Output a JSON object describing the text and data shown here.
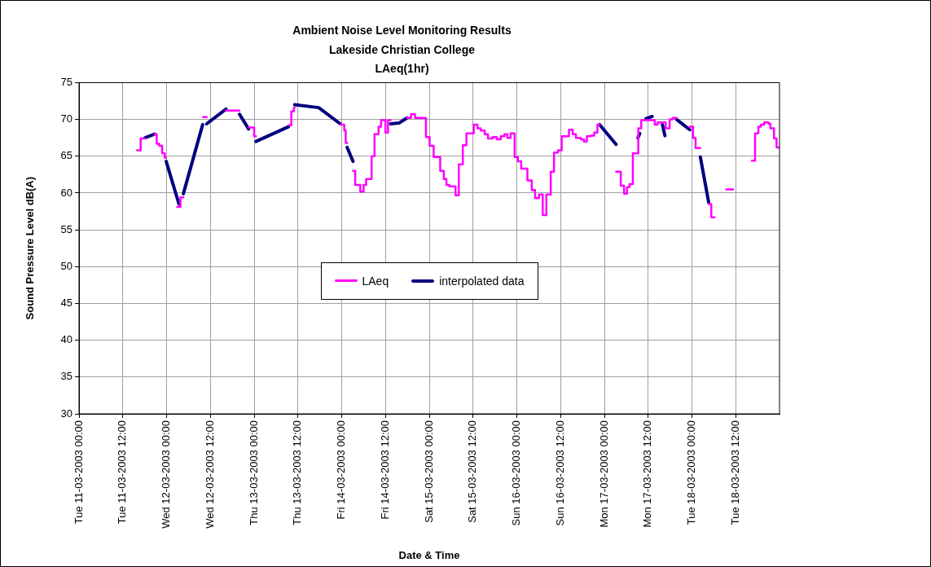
{
  "chart_data": {
    "type": "line",
    "title": "Ambient Noise Level Monitoring Results\nLakeside Christian College\nLAeq(1hr)",
    "xlabel": "Date & Time",
    "ylabel": "Sound Pressure Level dB(A)",
    "xlim": [
      "2003-03-11T00:00",
      "2003-03-19T00:00"
    ],
    "xticks": [
      {
        "value": "2003-03-11T00:00",
        "label": "Tue 11-03-2003 00:00"
      },
      {
        "value": "2003-03-11T12:00",
        "label": "Tue 11-03-2003 12:00"
      },
      {
        "value": "2003-03-12T00:00",
        "label": "Wed 12-03-2003 00:00"
      },
      {
        "value": "2003-03-12T12:00",
        "label": "Wed 12-03-2003 12:00"
      },
      {
        "value": "2003-03-13T00:00",
        "label": "Thu 13-03-2003 00:00"
      },
      {
        "value": "2003-03-13T12:00",
        "label": "Thu 13-03-2003 12:00"
      },
      {
        "value": "2003-03-14T00:00",
        "label": "Fri 14-03-2003 00:00"
      },
      {
        "value": "2003-03-14T12:00",
        "label": "Fri 14-03-2003 12:00"
      },
      {
        "value": "2003-03-15T00:00",
        "label": "Sat 15-03-2003 00:00"
      },
      {
        "value": "2003-03-15T12:00",
        "label": "Sat 15-03-2003 12:00"
      },
      {
        "value": "2003-03-16T00:00",
        "label": "Sun 16-03-2003 00:00"
      },
      {
        "value": "2003-03-16T12:00",
        "label": "Sun 16-03-2003 12:00"
      },
      {
        "value": "2003-03-17T00:00",
        "label": "Mon 17-03-2003 00:00"
      },
      {
        "value": "2003-03-17T12:00",
        "label": "Mon 17-03-2003 12:00"
      },
      {
        "value": "2003-03-18T00:00",
        "label": "Tue 18-03-2003 00:00"
      },
      {
        "value": "2003-03-18T12:00",
        "label": "Tue 18-03-2003 12:00"
      }
    ],
    "ylim": [
      30,
      75
    ],
    "yticks": [
      30,
      35,
      40,
      45,
      50,
      55,
      60,
      65,
      70,
      75
    ],
    "grid": true,
    "legend": "center",
    "marker": "none",
    "series": [
      {
        "name": "LAeq",
        "type": "step",
        "color": "#ff00ff",
        "x": [
          "2003-03-11T15:54",
          "2003-03-11T16:54",
          "2003-03-11T18:06",
          "2003-03-11T19:00",
          "2003-03-11T20:42",
          "2003-03-11T21:18",
          "2003-03-11T22:00",
          "2003-03-11T22:48",
          "2003-03-11T23:30",
          "2003-03-11T23:54",
          "2003-03-12T01:00",
          "2003-03-12T02:54",
          "2003-03-12T03:48",
          "2003-03-12T04:36",
          "2003-03-12T07:00",
          "2003-03-12T10:00",
          "2003-03-12T11:00",
          "2003-03-12T13:00",
          "2003-03-12T16:18",
          "2003-03-12T20:00",
          "2003-03-12T21:00",
          "2003-03-12T22:30",
          "2003-03-13T00:00",
          "2003-03-13T00:30",
          "2003-03-13T04:00",
          "2003-03-13T09:24",
          "2003-03-13T10:12",
          "2003-03-13T10:54",
          "2003-03-13T11:06",
          "2003-03-13T17:00",
          "2003-03-13T23:36",
          "2003-03-14T00:42",
          "2003-03-14T01:06",
          "2003-03-14T01:30",
          "2003-03-14T02:00",
          "2003-03-14T03:06",
          "2003-03-14T03:42",
          "2003-03-14T05:06",
          "2003-03-14T06:00",
          "2003-03-14T06:42",
          "2003-03-14T08:12",
          "2003-03-14T09:00",
          "2003-03-14T10:06",
          "2003-03-14T10:48",
          "2003-03-14T12:00",
          "2003-03-14T12:42",
          "2003-03-14T13:24",
          "2003-03-14T15:00",
          "2003-03-14T17:54",
          "2003-03-14T19:00",
          "2003-03-14T20:06",
          "2003-03-14T23:06",
          "2003-03-15T00:06",
          "2003-03-15T01:12",
          "2003-03-15T03:00",
          "2003-03-15T04:00",
          "2003-03-15T04:42",
          "2003-03-15T05:30",
          "2003-03-15T07:12",
          "2003-03-15T08:06",
          "2003-03-15T09:12",
          "2003-03-15T10:12",
          "2003-03-15T12:12",
          "2003-03-15T13:12",
          "2003-03-15T14:06",
          "2003-03-15T15:12",
          "2003-03-15T16:06",
          "2003-03-15T17:24",
          "2003-03-15T18:30",
          "2003-03-15T19:36",
          "2003-03-15T20:36",
          "2003-03-15T21:24",
          "2003-03-15T22:18",
          "2003-03-15T23:24",
          "2003-03-16T00:18",
          "2003-03-16T01:12",
          "2003-03-16T02:54",
          "2003-03-16T04:06",
          "2003-03-16T05:00",
          "2003-03-16T06:06",
          "2003-03-16T07:06",
          "2003-03-16T08:06",
          "2003-03-16T09:18",
          "2003-03-16T10:12",
          "2003-03-16T11:18",
          "2003-03-16T12:18",
          "2003-03-16T14:18",
          "2003-03-16T15:18",
          "2003-03-16T16:12",
          "2003-03-16T17:30",
          "2003-03-16T18:24",
          "2003-03-16T19:12",
          "2003-03-16T20:18",
          "2003-03-16T21:12",
          "2003-03-16T22:06",
          "2003-03-16T22:42",
          "2003-03-17T01:00",
          "2003-03-17T03:12",
          "2003-03-17T04:30",
          "2003-03-17T05:24",
          "2003-03-17T06:12",
          "2003-03-17T06:54",
          "2003-03-17T07:48",
          "2003-03-17T09:18",
          "2003-03-17T10:06",
          "2003-03-17T13:06",
          "2003-03-17T13:48",
          "2003-03-17T14:36",
          "2003-03-17T16:24",
          "2003-03-17T16:48",
          "2003-03-17T17:54",
          "2003-03-17T18:42",
          "2003-03-17T19:48",
          "2003-03-17T21:00",
          "2003-03-17T23:24",
          "2003-03-18T00:18",
          "2003-03-18T01:00",
          "2003-03-18T02:18",
          "2003-03-18T03:00",
          "2003-03-18T04:36",
          "2003-03-18T05:18",
          "2003-03-18T06:12",
          "2003-03-18T08:00",
          "2003-03-18T09:24",
          "2003-03-18T11:18",
          "2003-03-18T14:00",
          "2003-03-18T16:24",
          "2003-03-18T17:18",
          "2003-03-18T18:12",
          "2003-03-18T18:54",
          "2003-03-18T19:48",
          "2003-03-18T21:00",
          "2003-03-18T21:30",
          "2003-03-18T22:30",
          "2003-03-18T23:12",
          "2003-03-19T00:00"
        ],
        "values": [
          65.8,
          67.4,
          67.4,
          null,
          68.0,
          66.7,
          66.4,
          65.4,
          64.8,
          64.8,
          null,
          58.1,
          59.4,
          59.4,
          null,
          70.3,
          70.3,
          null,
          71.2,
          71.2,
          null,
          68.9,
          67.7,
          67.7,
          null,
          69.2,
          71.1,
          71.6,
          71.6,
          null,
          69.3,
          68.5,
          66.8,
          66.8,
          null,
          63.0,
          61.1,
          60.2,
          61.1,
          61.9,
          65.0,
          68.0,
          69.0,
          69.9,
          68.2,
          69.9,
          69.9,
          null,
          70.2,
          70.7,
          70.2,
          67.6,
          66.4,
          64.9,
          63.0,
          61.9,
          61.1,
          60.9,
          59.7,
          63.9,
          66.5,
          68.1,
          69.3,
          68.8,
          68.5,
          68.0,
          67.4,
          67.6,
          67.3,
          67.7,
          68.0,
          67.5,
          68.1,
          64.9,
          64.3,
          63.3,
          61.7,
          60.4,
          59.3,
          59.8,
          57.0,
          59.8,
          62.9,
          65.5,
          65.8,
          67.7,
          68.6,
          68.0,
          67.5,
          67.3,
          67.0,
          67.7,
          67.8,
          68.2,
          69.3,
          69.3,
          null,
          62.9,
          61.0,
          59.9,
          60.8,
          61.2,
          65.4,
          68.8,
          69.9,
          69.9,
          69.3,
          69.6,
          69.6,
          68.8,
          70.0,
          70.2,
          70.2,
          null,
          69.0,
          67.5,
          66.1,
          66.1,
          null,
          58.5,
          56.7,
          56.7,
          null,
          60.5,
          60.5,
          null,
          64.4,
          68.1,
          69.0,
          69.3,
          69.6,
          69.4,
          68.8,
          67.4,
          66.2,
          66.2
        ]
      },
      {
        "name": "interpolated data",
        "type": "line",
        "color": "#000080",
        "x": [
          "2003-03-11T18:06",
          "2003-03-11T20:42",
          "2003-03-11T21:00",
          "2003-03-11T23:54",
          "2003-03-12T03:24",
          "2003-03-12T04:00",
          "2003-03-12T04:36",
          "2003-03-12T09:54",
          "2003-03-12T10:18",
          "2003-03-12T11:00",
          "2003-03-12T16:18",
          "2003-03-12T18:00",
          "2003-03-12T20:00",
          "2003-03-12T22:30",
          "2003-03-12T23:00",
          "2003-03-13T00:30",
          "2003-03-13T09:24",
          "2003-03-13T10:00",
          "2003-03-13T11:06",
          "2003-03-13T17:42",
          "2003-03-13T23:36",
          "2003-03-14T00:00",
          "2003-03-14T01:30",
          "2003-03-14T03:06",
          "2003-03-14T08:00",
          "2003-03-14T13:24",
          "2003-03-14T15:42",
          "2003-03-14T17:54",
          "2003-03-16T00:00",
          "2003-03-16T22:42",
          "2003-03-17T03:12",
          "2003-03-17T06:00",
          "2003-03-17T09:12",
          "2003-03-17T09:42",
          "2003-03-17T10:30",
          "2003-03-17T11:24",
          "2003-03-17T13:06",
          "2003-03-17T15:00",
          "2003-03-17T15:54",
          "2003-03-17T16:36",
          "2003-03-17T18:00",
          "2003-03-17T19:48",
          "2003-03-17T23:24",
          "2003-03-18T01:00",
          "2003-03-18T02:18",
          "2003-03-18T04:36"
        ],
        "values": [
          67.5,
          68.0,
          null,
          64.3,
          58.5,
          null,
          59.9,
          69.3,
          null,
          69.4,
          71.4,
          null,
          70.7,
          68.7,
          null,
          67.0,
          69.0,
          null,
          72.0,
          71.6,
          69.4,
          null,
          66.2,
          64.3,
          null,
          69.4,
          69.5,
          70.2,
          null,
          69.3,
          66.6,
          null,
          67.5,
          68.1,
          null,
          70.1,
          70.4,
          null,
          69.3,
          67.8,
          null,
          70.0,
          68.6,
          null,
          64.9,
          58.7
        ]
      }
    ]
  }
}
